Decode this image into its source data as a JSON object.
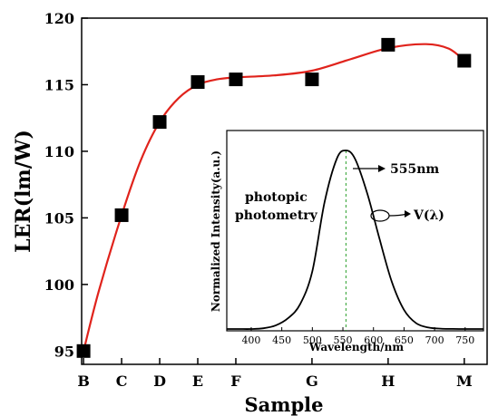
{
  "chart_data": [
    {
      "type": "scatter",
      "xlabel": "Sample",
      "ylabel": "LER(lm/W)",
      "categories": [
        "B",
        "C",
        "D",
        "E",
        "F",
        "G",
        "H",
        "M"
      ],
      "x_positions": [
        1,
        2,
        3,
        4,
        5,
        7,
        9,
        11
      ],
      "xlim": [
        0.95,
        11.6
      ],
      "ylim": [
        94,
        120
      ],
      "yticks": [
        95,
        100,
        105,
        110,
        115,
        120
      ],
      "series": [
        {
          "marker": "square",
          "color": "#000000",
          "values": [
            95.0,
            105.2,
            112.2,
            115.2,
            115.4,
            115.4,
            118.0,
            116.8
          ]
        }
      ],
      "fit_curve": {
        "color": "#e0231c",
        "points": [
          [
            1,
            95.0
          ],
          [
            1.4,
            99.5
          ],
          [
            2,
            105.2
          ],
          [
            2.5,
            109.3
          ],
          [
            3,
            112.2
          ],
          [
            3.5,
            114.0
          ],
          [
            4,
            115.0
          ],
          [
            4.5,
            115.4
          ],
          [
            5,
            115.55
          ],
          [
            6,
            115.7
          ],
          [
            7,
            116.05
          ],
          [
            8,
            116.9
          ],
          [
            9,
            117.75
          ],
          [
            10,
            118.05
          ],
          [
            10.6,
            117.7
          ],
          [
            11,
            116.8
          ]
        ]
      },
      "grid": false
    },
    {
      "type": "line",
      "xlabel": "Wavelength/nm",
      "ylabel": "Normalized Intensity(a.u.)",
      "xlim": [
        360,
        780
      ],
      "xticks": [
        400,
        450,
        500,
        550,
        600,
        650,
        700,
        750
      ],
      "peak": {
        "x": 555,
        "label": "555nm",
        "line_color": "#2ca02c"
      },
      "curve": {
        "label": "V(λ)",
        "x": [
          360,
          380,
          400,
          420,
          440,
          460,
          480,
          500,
          520,
          540,
          555,
          570,
          590,
          610,
          630,
          650,
          670,
          690,
          710,
          730,
          760,
          780
        ],
        "y": [
          0.0,
          0.0,
          0.0,
          0.004,
          0.02,
          0.06,
          0.139,
          0.323,
          0.71,
          0.954,
          1.0,
          0.952,
          0.757,
          0.503,
          0.265,
          0.107,
          0.032,
          0.008,
          0.002,
          0.0005,
          0.0,
          0.0
        ]
      },
      "annotation": "photopic\nphotometry",
      "grid": false
    }
  ],
  "main": {
    "ylabel": "LER(lm/W)",
    "xlabel": "Sample",
    "ytick_labels": [
      "95",
      "100",
      "105",
      "110",
      "115",
      "120"
    ],
    "xtick_labels": [
      "B",
      "C",
      "D",
      "E",
      "F",
      "G",
      "H",
      "M"
    ]
  },
  "inset": {
    "ylabel": "Normalized Intensity(a.u.)",
    "xlabel": "Wavelength/nm",
    "xtick_labels": [
      "400",
      "450",
      "500",
      "550",
      "600",
      "650",
      "700",
      "750"
    ],
    "peak_label": "555nm",
    "curve_label": "V(λ)",
    "annotation_line1": "photopic",
    "annotation_line2": "photometry"
  }
}
